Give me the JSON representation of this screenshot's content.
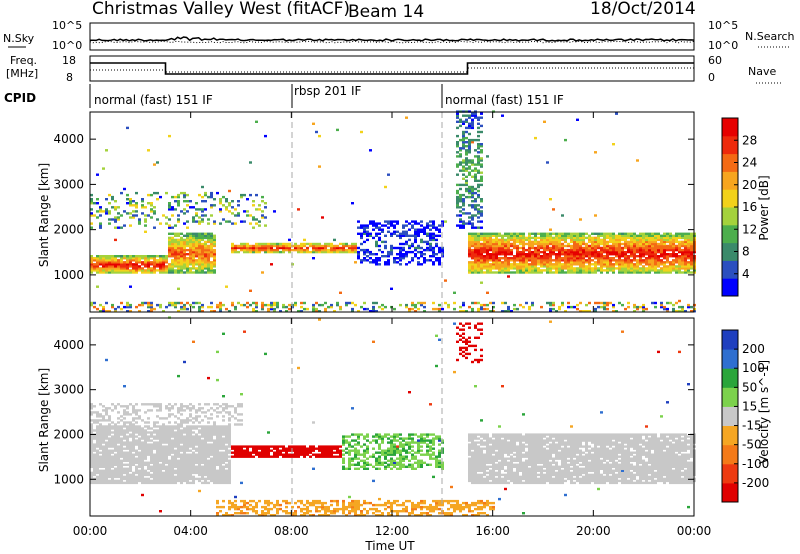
{
  "header": {
    "station": "Christmas Valley West (fitACF)",
    "beam": "Beam 14",
    "date": "18/Oct/2014"
  },
  "noise_panel": {
    "left_label": "N.Sky",
    "right_label": "N.Search",
    "left_ticks": [
      "10^5",
      "10^0"
    ],
    "right_ticks": [
      "10^5",
      "10^0"
    ]
  },
  "freq_panel": {
    "left_label_1": "Freq.",
    "left_label_2": "[MHz]",
    "right_label": "Nave",
    "left_ticks": [
      "18",
      "8"
    ],
    "right_ticks": [
      "60",
      "0"
    ]
  },
  "cpid": {
    "label": "CPID",
    "segments": [
      {
        "name": "normal (fast) 151 IF",
        "start_h": 0,
        "end_h": 8
      },
      {
        "name": "rbsp 201 IF",
        "start_h": 8,
        "end_h": 14
      },
      {
        "name": "normal (fast) 151 IF",
        "start_h": 14,
        "end_h": 24
      }
    ]
  },
  "axes": {
    "ylabel": "Slant Range [km]",
    "xlabel": "Time UT",
    "xticks": [
      "00:00",
      "04:00",
      "08:00",
      "12:00",
      "16:00",
      "20:00",
      "00:00"
    ],
    "yticks": [
      "1000",
      "2000",
      "3000",
      "4000"
    ]
  },
  "chart_data": [
    {
      "type": "heatmap",
      "title": "",
      "quantity": "Power",
      "xlabel": "Time UT",
      "ylabel": "Slant Range [km]",
      "xlim_hours": [
        0,
        24
      ],
      "ylim_km": [
        180,
        4600
      ],
      "colorbar": {
        "label": "Power [dB]",
        "ticks": [
          "4",
          "8",
          "12",
          "16",
          "20",
          "24",
          "28"
        ],
        "colors": [
          "#0000ff",
          "#2b4fbf",
          "#3a8a6a",
          "#4cae4c",
          "#a4d23c",
          "#f2d21a",
          "#f7a51e",
          "#f46a14",
          "#ee2a0c",
          "#e60000"
        ]
      },
      "features": [
        {
          "name": "main echo band",
          "time_h": [
            0,
            3
          ],
          "range_km": [
            1000,
            1400
          ],
          "dB": 28
        },
        {
          "name": "main echo band",
          "time_h": [
            3,
            5
          ],
          "range_km": [
            1000,
            1900
          ],
          "dB": 24
        },
        {
          "name": "echo band",
          "time_h": [
            5.5,
            10.5
          ],
          "range_km": [
            1450,
            1700
          ],
          "dB": 26
        },
        {
          "name": "patchy scatter",
          "time_h": [
            10.5,
            14
          ],
          "range_km": [
            1200,
            2200
          ],
          "dB": 6
        },
        {
          "name": "post-gap band",
          "time_h": [
            15,
            24
          ],
          "range_km": [
            1000,
            1900
          ],
          "dB": 28
        },
        {
          "name": "high range scatter",
          "time_h": [
            14.5,
            15.5
          ],
          "range_km": [
            2000,
            4600
          ],
          "dB": 12
        }
      ]
    },
    {
      "type": "heatmap",
      "title": "",
      "quantity": "Velocity",
      "xlabel": "Time UT",
      "ylabel": "Slant Range [km]",
      "xlim_hours": [
        0,
        24
      ],
      "ylim_km": [
        180,
        4600
      ],
      "colorbar": {
        "label": "Velocity [m s^-1]",
        "ticks": [
          "200",
          "100",
          "50",
          "15",
          "-15",
          "-50",
          "-100",
          "-200"
        ],
        "colors": [
          "#1f3fbf",
          "#2f6fd0",
          "#2aa53a",
          "#7cd24c",
          "#c8c8c8",
          "#f5a623",
          "#f47a18",
          "#ee3a10",
          "#e00000"
        ]
      },
      "features": [
        {
          "name": "ground scatter",
          "time_h": [
            0,
            5.5
          ],
          "range_km": [
            900,
            2200
          ],
          "velocity": 0
        },
        {
          "name": "negative velocity echo",
          "time_h": [
            5.5,
            10
          ],
          "range_km": [
            1450,
            1750
          ],
          "velocity": -200
        },
        {
          "name": "positive velocity scatter",
          "time_h": [
            10,
            14
          ],
          "range_km": [
            1200,
            2000
          ],
          "velocity": 60
        },
        {
          "name": "ground scatter",
          "time_h": [
            15,
            24
          ],
          "range_km": [
            900,
            2000
          ],
          "velocity": 0
        },
        {
          "name": "negative velocity bursts",
          "time_h": [
            14.5,
            15.5
          ],
          "range_km": [
            3600,
            4500
          ],
          "velocity": -200
        }
      ]
    }
  ]
}
